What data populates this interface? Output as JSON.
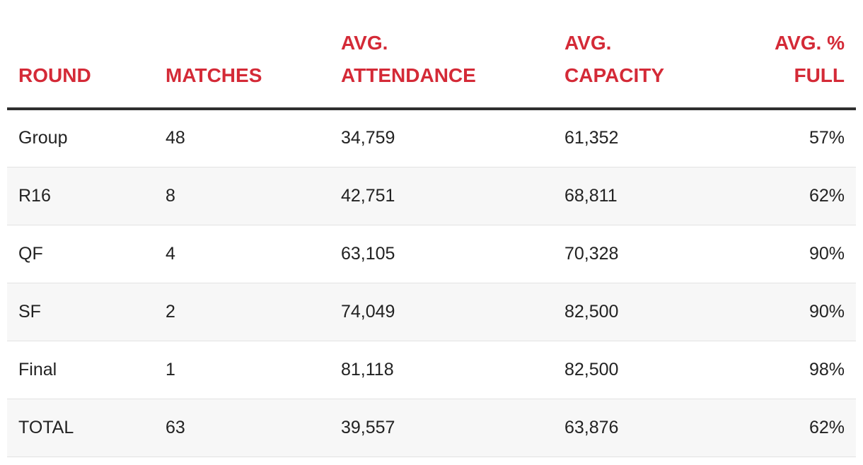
{
  "chart_data": {
    "type": "table",
    "columns": [
      "ROUND",
      "MATCHES",
      "AVG. ATTENDANCE",
      "AVG. CAPACITY",
      "AVG. % FULL"
    ],
    "header_lines": [
      [
        "ROUND"
      ],
      [
        "MATCHES"
      ],
      [
        "AVG.",
        "ATTENDANCE"
      ],
      [
        "AVG.",
        "CAPACITY"
      ],
      [
        "AVG. %",
        "FULL"
      ]
    ],
    "rows": [
      [
        "Group",
        "48",
        "34,759",
        "61,352",
        "57%"
      ],
      [
        "R16",
        "8",
        "42,751",
        "68,811",
        "62%"
      ],
      [
        "QF",
        "4",
        "63,105",
        "70,328",
        "90%"
      ],
      [
        "SF",
        "2",
        "74,049",
        "82,500",
        "90%"
      ],
      [
        "Final",
        "1",
        "81,118",
        "82,500",
        "98%"
      ],
      [
        "TOTAL",
        "63",
        "39,557",
        "63,876",
        "62%"
      ]
    ],
    "header_color": "#d42a37"
  }
}
